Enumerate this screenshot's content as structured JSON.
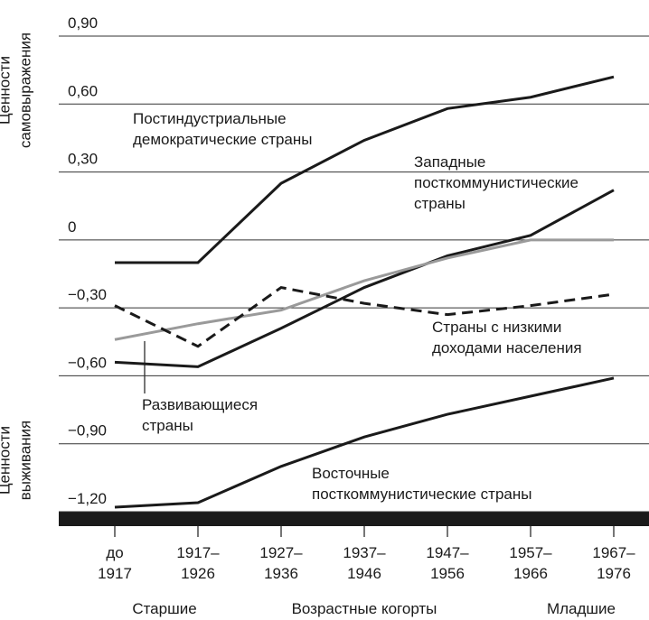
{
  "chart_data": {
    "type": "line",
    "y_title_top": "Ценности\nсамовыражения",
    "y_title_bottom": "Ценности\nвыживания",
    "categories": [
      "до\n1917",
      "1917–\n1926",
      "1927–\n1936",
      "1937–\n1946",
      "1947–\n1956",
      "1957–\n1966",
      "1967–\n1976"
    ],
    "x_notes": [
      "Старшие",
      "Возрастные когорты",
      "Младшие"
    ],
    "ylim": [
      -1.2,
      0.9
    ],
    "yticks": [
      {
        "value": 0.9,
        "label": "0,90"
      },
      {
        "value": 0.6,
        "label": "0,60"
      },
      {
        "value": 0.3,
        "label": "0,30"
      },
      0,
      {
        "value": -0.3,
        "label": "−0,30"
      },
      {
        "value": -0.6,
        "label": "−0,60"
      },
      {
        "value": -0.9,
        "label": "−0,90"
      },
      {
        "value": -1.2,
        "label": "−1,20"
      }
    ],
    "grid": true,
    "series": [
      {
        "name": "Постиндустриальные\nдемократические страны",
        "color": "#1a1a1a",
        "dash": false,
        "values": [
          -0.1,
          -0.1,
          0.25,
          0.44,
          0.58,
          0.63,
          0.72
        ]
      },
      {
        "name": "Западные\nпосткоммунистические\nстраны",
        "color": "#1a1a1a",
        "dash": false,
        "values": [
          -0.54,
          -0.56,
          -0.39,
          -0.21,
          -0.07,
          0.02,
          0.22
        ]
      },
      {
        "name": "Развивающиеся\nстраны",
        "color": "#9a9a9a",
        "dash": false,
        "values": [
          -0.44,
          -0.37,
          -0.31,
          -0.18,
          -0.08,
          0.0,
          0.0
        ]
      },
      {
        "name": "Страны с низкими\nдоходами населения",
        "color": "#1a1a1a",
        "dash": true,
        "values": [
          -0.29,
          -0.47,
          -0.21,
          -0.28,
          -0.33,
          -0.29,
          -0.24
        ]
      },
      {
        "name": "Восточные\nпосткоммунистические страны",
        "color": "#1a1a1a",
        "dash": false,
        "values": [
          -1.18,
          -1.16,
          -1.0,
          -0.87,
          -0.77,
          -0.69,
          -0.61
        ]
      }
    ]
  }
}
